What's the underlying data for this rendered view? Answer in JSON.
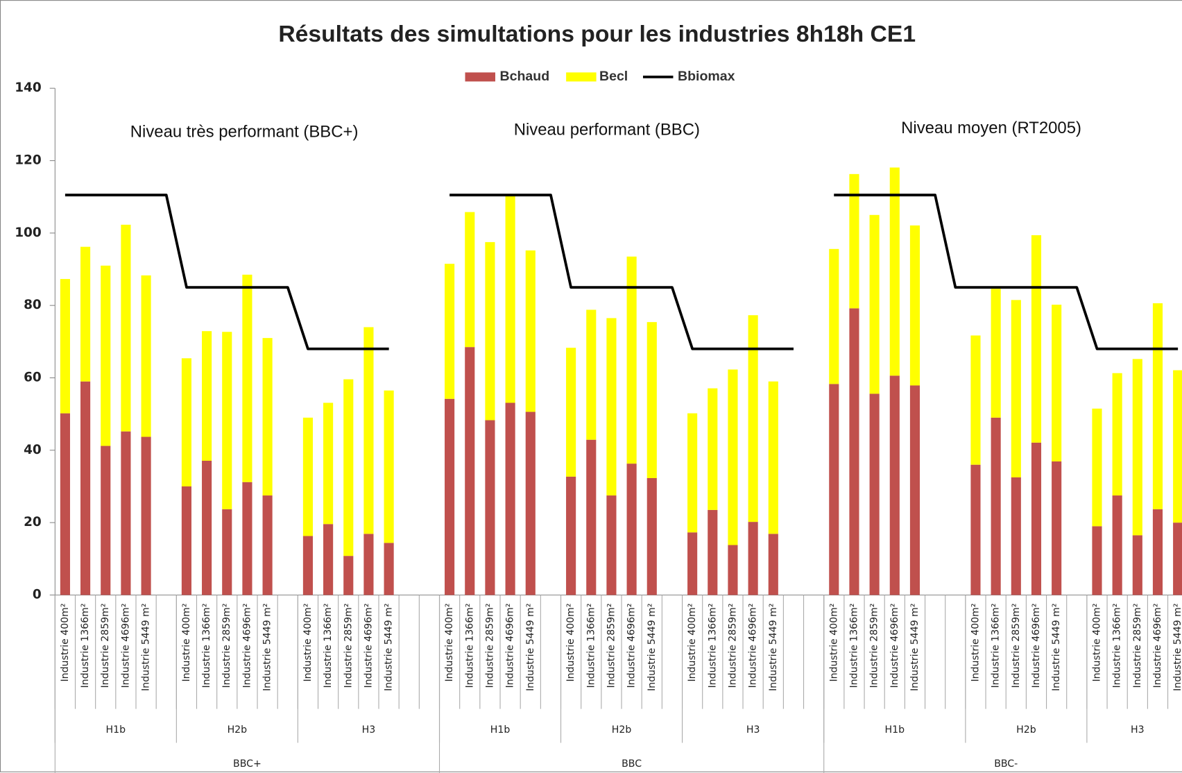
{
  "chart_data": {
    "type": "bar",
    "stacked": true,
    "title": "Résultats des simultations pour les industries 8h18h CE1",
    "annotations": [
      "Niveau très performant (BBC+)",
      "Niveau performant (BBC)",
      "Niveau moyen (RT2005)"
    ],
    "categories": [
      "Industrie 400m²",
      "Industrie 1366m²",
      "Industrie 2859m²",
      "Industrie 4696m²",
      "Industrie 5449 m²",
      null,
      "Industrie 400m²",
      "Industrie 1366m²",
      "Industrie 2859m²",
      "Industrie 4696m²",
      "Industrie 5449 m²",
      null,
      "Industrie 400m²",
      "Industrie 1366m²",
      "Industrie 2859m²",
      "Industrie 4696m²",
      "Industrie 5449 m²",
      null,
      null,
      "Industrie 400m²",
      "Industrie 1366m²",
      "Industrie 2859m²",
      "Industrie 4696m²",
      "Industrie 5449 m²",
      null,
      "Industrie 400m²",
      "Industrie 1366m²",
      "Industrie 2859m²",
      "Industrie 4696m²",
      "Industrie 5449 m²",
      null,
      "Industrie 400m²",
      "Industrie 1366m²",
      "Industrie 2859m²",
      "Industrie 4696m²",
      "Industrie 5449 m²",
      null,
      null,
      "Industrie 400m²",
      "Industrie 1366m²",
      "Industrie 2859m²",
      "Industrie 4696m²",
      "Industrie 5449 m²",
      null,
      null,
      "Industrie 400m²",
      "Industrie 1366m²",
      "Industrie 2859m²",
      "Industrie 4696m²",
      "Industrie 5449 m²",
      null,
      "Industrie 400m²",
      "Industrie 1366m²",
      "Industrie 2859m²",
      "Industrie 4696m²",
      "Industrie 5449 m²"
    ],
    "zones": [
      "H1b",
      null,
      null,
      null,
      null,
      null,
      "H2b",
      null,
      null,
      null,
      null,
      null,
      "H3",
      null,
      null,
      null,
      null,
      null,
      null,
      "H1b",
      null,
      null,
      null,
      null,
      null,
      "H2b",
      null,
      null,
      null,
      null,
      null,
      "H3",
      null,
      null,
      null,
      null,
      null,
      null,
      "H1b",
      null,
      null,
      null,
      null,
      null,
      null,
      "H2b",
      null,
      null,
      null,
      null,
      null,
      "H3",
      null,
      null,
      null,
      null
    ],
    "levels": [
      "BBC+",
      null,
      null,
      null,
      null,
      null,
      null,
      null,
      null,
      null,
      null,
      null,
      null,
      null,
      null,
      null,
      null,
      null,
      null,
      "BBC",
      null,
      null,
      null,
      null,
      null,
      null,
      null,
      null,
      null,
      null,
      null,
      null,
      null,
      null,
      null,
      null,
      null,
      null,
      "BBC-",
      null,
      null,
      null,
      null,
      null,
      null,
      null,
      null,
      null,
      null,
      null,
      null,
      null,
      null,
      null,
      null,
      null
    ],
    "series": [
      {
        "name": "Bchaud",
        "color": "#c0504d",
        "values": [
          50.2,
          59,
          41.2,
          45.2,
          43.7,
          null,
          30,
          37.1,
          23.7,
          31.2,
          27.5,
          null,
          16.3,
          19.6,
          10.8,
          16.9,
          14.4,
          null,
          null,
          54.2,
          68.5,
          48.3,
          53.1,
          50.6,
          null,
          32.7,
          42.9,
          27.5,
          36.3,
          32.3,
          null,
          17.3,
          23.5,
          13.8,
          20.2,
          16.9,
          null,
          null,
          58.3,
          79.2,
          55.6,
          60.6,
          57.9,
          null,
          null,
          36,
          49,
          32.5,
          42.1,
          36.9,
          null,
          19,
          27.5,
          16.5,
          23.7,
          20
        ]
      },
      {
        "name": "Becl",
        "color": "#ffff00",
        "values": [
          37.1,
          37.2,
          49.8,
          57.1,
          44.6,
          null,
          35.4,
          35.8,
          49,
          57.3,
          43.5,
          null,
          32.7,
          33.5,
          48.8,
          57.1,
          42.1,
          null,
          null,
          37.3,
          37.3,
          49.2,
          57.1,
          44.6,
          null,
          35.6,
          35.9,
          49,
          57.2,
          43.1,
          null,
          32.9,
          33.6,
          48.5,
          57.1,
          42.1,
          null,
          null,
          37.3,
          37.1,
          49.4,
          57.5,
          44.2,
          null,
          null,
          35.7,
          35.6,
          49,
          57.3,
          43.3,
          null,
          32.5,
          33.8,
          48.7,
          56.9,
          42.1
        ]
      },
      {
        "name": "Bbiomax",
        "color": "#000000",
        "type": "line",
        "values": [
          110.5,
          110.5,
          110.5,
          110.5,
          110.5,
          110.5,
          85,
          85,
          85,
          85,
          85,
          85,
          68,
          68,
          68,
          68,
          68,
          null,
          null,
          110.5,
          110.5,
          110.5,
          110.5,
          110.5,
          110.5,
          85,
          85,
          85,
          85,
          85,
          85,
          68,
          68,
          68,
          68,
          68,
          68,
          null,
          110.5,
          110.5,
          110.5,
          110.5,
          110.5,
          110.5,
          85,
          85,
          85,
          85,
          85,
          85,
          85,
          68,
          68,
          68,
          68,
          68
        ]
      }
    ],
    "ylim": [
      0,
      140
    ],
    "yticks": [
      0,
      20,
      40,
      60,
      80,
      100,
      120,
      140
    ],
    "grid": false,
    "legend": "top"
  }
}
